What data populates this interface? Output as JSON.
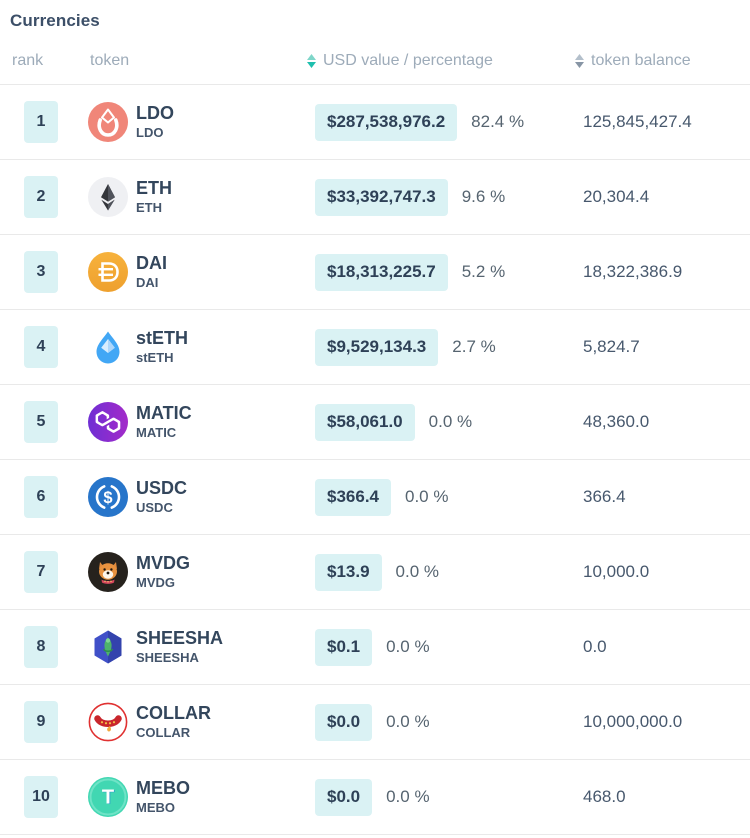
{
  "title": "Currencies",
  "columns": [
    {
      "id": "rank",
      "label": "rank",
      "sortable": false
    },
    {
      "id": "token",
      "label": "token",
      "sortable": false
    },
    {
      "id": "usd",
      "label": "USD value / percentage",
      "sortable": true,
      "sort_active": true
    },
    {
      "id": "balance",
      "label": "token balance",
      "sortable": true,
      "sort_active": false
    }
  ],
  "colors": {
    "accent_sort_active": "#1fbfae",
    "sort_inactive": "#8795a5",
    "badge_background": "#daf2f4",
    "title_text": "#3c4f68",
    "header_text": "#9dabb9",
    "value_text": "#2e4157",
    "percentage_text": "#566470",
    "balance_text": "#47586d",
    "row_divider": "#e9e9e9"
  },
  "rows": [
    {
      "rank": "1",
      "symbol": "LDO",
      "sub": "LDO",
      "usd": "$287,538,976.2",
      "pct": "82.4 %",
      "balance": "125,845,427.4",
      "icon_key": "ldo",
      "icon_name": "ldo-token-icon"
    },
    {
      "rank": "2",
      "symbol": "ETH",
      "sub": "ETH",
      "usd": "$33,392,747.3",
      "pct": "9.6 %",
      "balance": "20,304.4",
      "icon_key": "eth",
      "icon_name": "eth-token-icon"
    },
    {
      "rank": "3",
      "symbol": "DAI",
      "sub": "DAI",
      "usd": "$18,313,225.7",
      "pct": "5.2 %",
      "balance": "18,322,386.9",
      "icon_key": "dai",
      "icon_name": "dai-token-icon"
    },
    {
      "rank": "4",
      "symbol": "stETH",
      "sub": "stETH",
      "usd": "$9,529,134.3",
      "pct": "2.7 %",
      "balance": "5,824.7",
      "icon_key": "steth",
      "icon_name": "steth-token-icon"
    },
    {
      "rank": "5",
      "symbol": "MATIC",
      "sub": "MATIC",
      "usd": "$58,061.0",
      "pct": "0.0 %",
      "balance": "48,360.0",
      "icon_key": "matic",
      "icon_name": "matic-token-icon"
    },
    {
      "rank": "6",
      "symbol": "USDC",
      "sub": "USDC",
      "usd": "$366.4",
      "pct": "0.0 %",
      "balance": "366.4",
      "icon_key": "usdc",
      "icon_name": "usdc-token-icon"
    },
    {
      "rank": "7",
      "symbol": "MVDG",
      "sub": "MVDG",
      "usd": "$13.9",
      "pct": "0.0 %",
      "balance": "10,000.0",
      "icon_key": "mvdg",
      "icon_name": "mvdg-token-icon"
    },
    {
      "rank": "8",
      "symbol": "SHEESHA",
      "sub": "SHEESHA",
      "usd": "$0.1",
      "pct": "0.0 %",
      "balance": "0.0",
      "icon_key": "sheesha",
      "icon_name": "sheesha-token-icon"
    },
    {
      "rank": "9",
      "symbol": "COLLAR",
      "sub": "COLLAR",
      "usd": "$0.0",
      "pct": "0.0 %",
      "balance": "10,000,000.0",
      "icon_key": "collar",
      "icon_name": "collar-token-icon"
    },
    {
      "rank": "10",
      "symbol": "MEBO",
      "sub": "MEBO",
      "usd": "$0.0",
      "pct": "0.0 %",
      "balance": "468.0",
      "icon_key": "mebo",
      "icon_name": "mebo-token-icon"
    }
  ]
}
